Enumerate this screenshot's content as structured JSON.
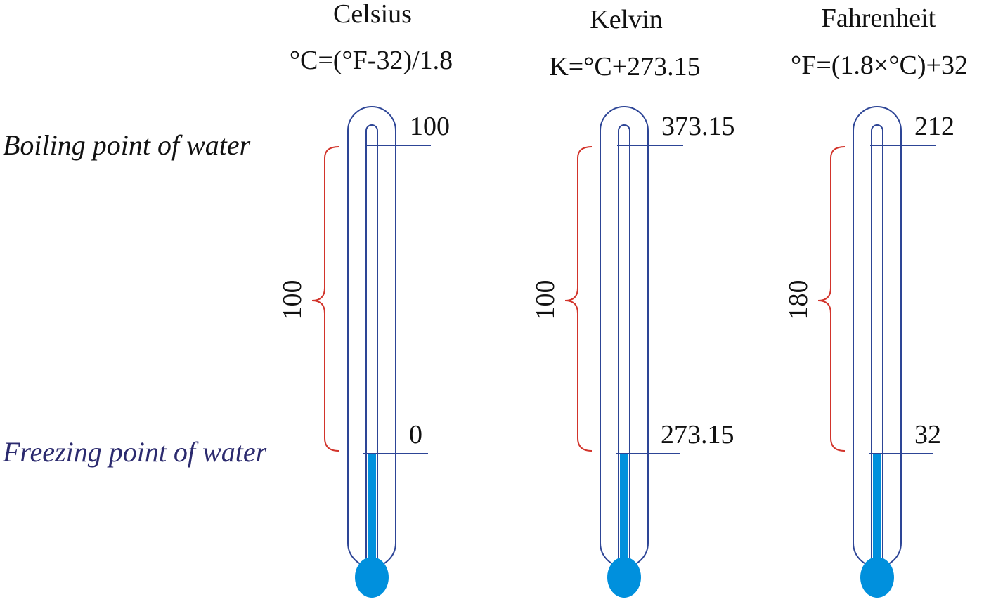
{
  "labels": {
    "boiling": "Boiling point of water",
    "freezing": "Freezing point of water"
  },
  "colors": {
    "outline": "#2d4596",
    "mercury": "#0090dd",
    "bracket": "#d2342b",
    "text": "#111111",
    "freezing_text": "#2b2a6e"
  },
  "scales": [
    {
      "name": "Celsius",
      "formula": "°C=(°F-32)/1.8",
      "top": "100",
      "bottom": "0",
      "range": "100"
    },
    {
      "name": "Kelvin",
      "formula": "K=°C+273.15",
      "top": "373.15",
      "bottom": "273.15",
      "range": "100"
    },
    {
      "name": "Fahrenheit",
      "formula": "°F=(1.8×°C)+32",
      "top": "212",
      "bottom": "32",
      "range": "180"
    }
  ]
}
